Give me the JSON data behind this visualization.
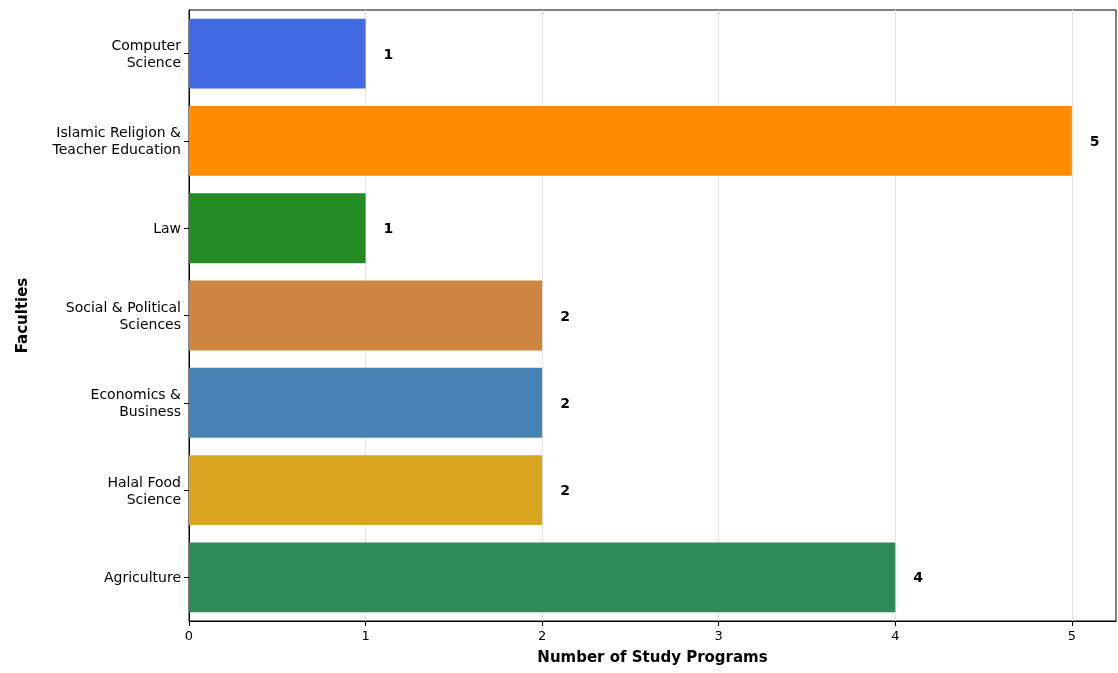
{
  "chart_data": {
    "type": "bar",
    "orientation": "horizontal",
    "xlabel": "Number of Study Programs",
    "ylabel": "Faculties",
    "categories": [
      "Computer\nScience",
      "Islamic Religion &\nTeacher Education",
      "Law",
      "Social & Political\nSciences",
      "Economics &\nBusiness",
      "Halal Food\nScience",
      "Agriculture"
    ],
    "values": [
      1,
      5,
      1,
      2,
      2,
      2,
      4
    ],
    "colors": [
      "#4169e1",
      "#ff8c00",
      "#228b22",
      "#cd853f",
      "#4682b4",
      "#daa520",
      "#2e8b57"
    ],
    "xlim": [
      0,
      5.25
    ],
    "xticks": [
      0,
      1,
      2,
      3,
      4,
      5
    ],
    "grid": "x",
    "data_labels": true
  }
}
